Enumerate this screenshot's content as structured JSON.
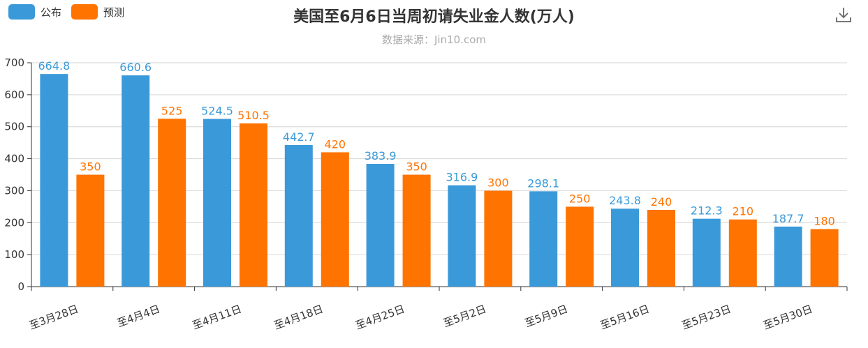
{
  "legend": {
    "items": [
      {
        "label": "公布",
        "color": "#3a9ad9"
      },
      {
        "label": "预测",
        "color": "#ff7300"
      }
    ]
  },
  "toolbar": {
    "download_icon": "download-icon"
  },
  "chart_data": {
    "type": "bar",
    "title": "美国至6月6日当周初请失业金人数(万人)",
    "subtitle": "数据来源：Jin10.com",
    "categories": [
      "至3月28日",
      "至4月4日",
      "至4月11日",
      "至4月18日",
      "至4月25日",
      "至5月2日",
      "至5月9日",
      "至5月16日",
      "至5月23日",
      "至5月30日"
    ],
    "series": [
      {
        "name": "公布",
        "color": "#3a9ad9",
        "values": [
          664.8,
          660.6,
          524.5,
          442.7,
          383.9,
          316.9,
          298.1,
          243.8,
          212.3,
          187.7
        ],
        "labels": [
          "664.8",
          "660.6",
          "524.5",
          "442.7",
          "383.9",
          "316.9",
          "298.1",
          "243.8",
          "212.3",
          "187.7"
        ]
      },
      {
        "name": "预测",
        "color": "#ff7300",
        "values": [
          350,
          525,
          510.5,
          420,
          350,
          300,
          250,
          240,
          210,
          180
        ],
        "labels": [
          "350",
          "525",
          "510.5",
          "420",
          "350",
          "300",
          "250",
          "240",
          "210",
          "180"
        ]
      }
    ],
    "ylim": [
      0,
      700
    ],
    "yticks": [
      "0",
      "100",
      "200",
      "300",
      "400",
      "500",
      "600",
      "700"
    ],
    "grid": true,
    "legend_position": "top-left"
  }
}
